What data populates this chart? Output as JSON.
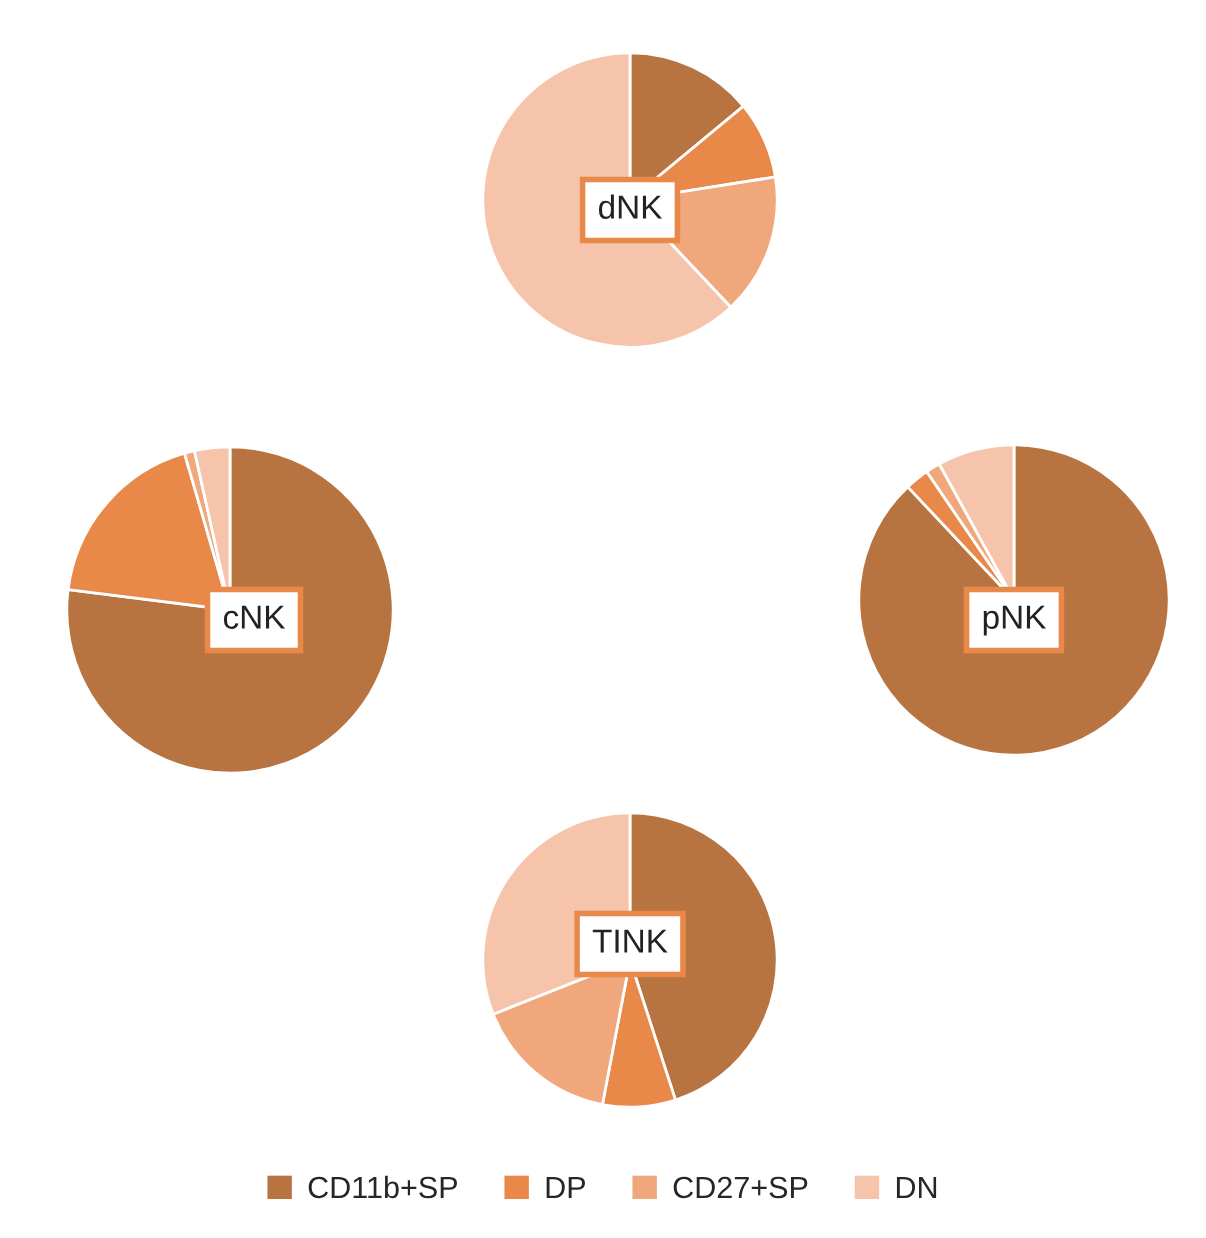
{
  "chart_data": [
    {
      "type": "pie",
      "title": "dNK",
      "categories": [
        "CD11b+SP",
        "DP",
        "CD27+SP",
        "DN"
      ],
      "values": [
        14,
        8.5,
        15.5,
        62
      ],
      "colors": [
        "#b87440",
        "#e8894a",
        "#f0a77c",
        "#f5c4aa"
      ],
      "legend": "bottom"
    },
    {
      "type": "pie",
      "title": "cNK",
      "categories": [
        null,
        null,
        null,
        null
      ],
      "values": [
        77,
        18.5,
        1,
        3.5
      ],
      "colors": [
        "#b87440",
        "#e8894a",
        "#f0a77c",
        "#f5c4aa"
      ]
    },
    {
      "type": "pie",
      "title": "pNK",
      "categories": [
        null,
        null,
        null,
        null
      ],
      "values": [
        88,
        2.5,
        1.5,
        8
      ],
      "colors": [
        "#b87440",
        "#e8894a",
        "#f0a77c",
        "#f5c4aa"
      ]
    },
    {
      "type": "pie",
      "title": "TINK",
      "categories": [
        null,
        null,
        null,
        null
      ],
      "values": [
        45,
        8,
        16,
        31
      ],
      "colors": [
        "#b87440",
        "#e8894a",
        "#f0a77c",
        "#f5c4aa"
      ]
    }
  ]
}
